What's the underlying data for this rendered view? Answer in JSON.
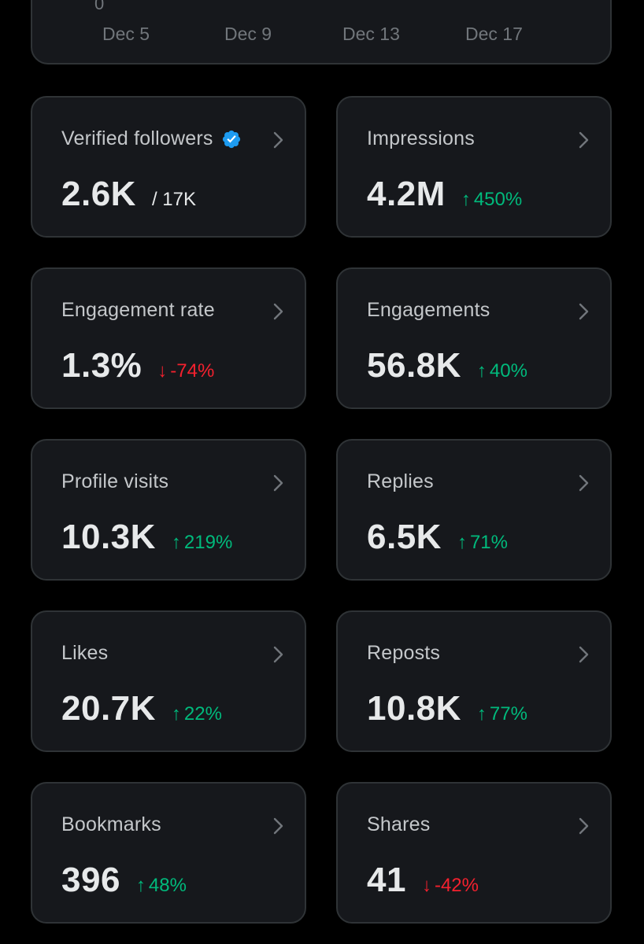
{
  "chart": {
    "y_zero_label": "0",
    "x_ticks": [
      "Dec 5",
      "Dec 9",
      "Dec 13",
      "Dec 17"
    ],
    "dot_colors": [
      "#1d9bf0",
      "#00ba7c"
    ]
  },
  "cards": [
    {
      "title": "Verified followers",
      "value": "2.6K",
      "sub": "/ 17K",
      "verified": true
    },
    {
      "title": "Impressions",
      "value": "4.2M",
      "delta": "450%",
      "direction": "up"
    },
    {
      "title": "Engagement rate",
      "value": "1.3%",
      "delta": "-74%",
      "direction": "down"
    },
    {
      "title": "Engagements",
      "value": "56.8K",
      "delta": "40%",
      "direction": "up"
    },
    {
      "title": "Profile visits",
      "value": "10.3K",
      "delta": "219%",
      "direction": "up"
    },
    {
      "title": "Replies",
      "value": "6.5K",
      "delta": "71%",
      "direction": "up"
    },
    {
      "title": "Likes",
      "value": "20.7K",
      "delta": "22%",
      "direction": "up"
    },
    {
      "title": "Reposts",
      "value": "10.8K",
      "delta": "77%",
      "direction": "up"
    },
    {
      "title": "Bookmarks",
      "value": "396",
      "delta": "48%",
      "direction": "up"
    },
    {
      "title": "Shares",
      "value": "41",
      "delta": "-42%",
      "direction": "down"
    }
  ],
  "arrows": {
    "up": "↑",
    "down": "↓"
  },
  "colors": {
    "up": "#00ba7c",
    "down": "#f4212e",
    "verified": "#1d9bf0"
  }
}
